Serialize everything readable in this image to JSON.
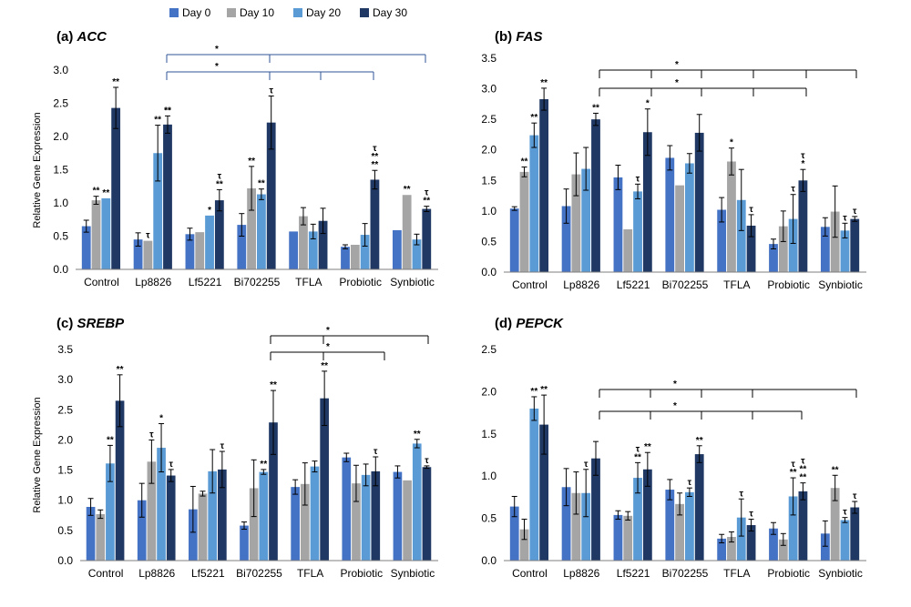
{
  "figure": {
    "legend": {
      "labels": [
        "Day 0",
        "Day 10",
        "Day 20",
        "Day 30"
      ],
      "colors": [
        "#4472c4",
        "#a5a5a5",
        "#5b9bd5",
        "#1f3864"
      ]
    },
    "y_axis_label": "Relative Gene Expression"
  },
  "chart_data": [
    {
      "type": "bar",
      "label": "(a) ",
      "gene": "ACC",
      "title": "(a) ACC",
      "ylabel": "Relative Gene Expression",
      "ylim": [
        0,
        3.0
      ],
      "yticks": [
        "0.0",
        "0.5",
        "1.0",
        "1.5",
        "2.0",
        "2.5",
        "3.0"
      ],
      "grid": false,
      "categories": [
        "Control",
        "Lp8826",
        "Lf5221",
        "Bi702255",
        "TFLA",
        "Probiotic",
        "Synbiotic"
      ],
      "series": [
        {
          "name": "Day 0",
          "values": [
            0.65,
            0.45,
            0.53,
            0.67,
            0.57,
            0.34,
            0.59
          ],
          "errors": [
            0.09,
            0.1,
            0.09,
            0.17,
            0.0,
            0.03,
            0.0
          ]
        },
        {
          "name": "Day 10",
          "values": [
            1.04,
            0.43,
            0.56,
            1.22,
            0.8,
            0.37,
            1.12
          ],
          "errors": [
            0.06,
            0.0,
            0.0,
            0.33,
            0.13,
            0.0,
            0.0
          ]
        },
        {
          "name": "Day 20",
          "values": [
            1.07,
            1.75,
            0.81,
            1.13,
            0.57,
            0.52,
            0.45
          ],
          "errors": [
            0.0,
            0.42,
            0.0,
            0.08,
            0.11,
            0.17,
            0.08
          ]
        },
        {
          "name": "Day 30",
          "values": [
            2.43,
            2.18,
            1.04,
            2.21,
            0.73,
            1.35,
            0.91
          ],
          "errors": [
            0.31,
            0.13,
            0.16,
            0.4,
            0.19,
            0.14,
            0.04
          ]
        }
      ],
      "significance_marks": [
        "**",
        "**",
        "**",
        "**",
        "**",
        "**",
        "τ",
        "*",
        "τ",
        "**",
        "**",
        "**",
        "τ",
        "τ",
        "**",
        "**",
        "τ",
        "**",
        "**"
      ],
      "comparison_brackets": [
        "*",
        "*"
      ]
    },
    {
      "type": "bar",
      "label": "(b) ",
      "gene": "FAS",
      "title": "(b) FAS",
      "ylabel": "",
      "ylim": [
        0,
        3.5
      ],
      "yticks": [
        "0.0",
        "0.5",
        "1.0",
        "1.5",
        "2.0",
        "2.5",
        "3.0",
        "3.5"
      ],
      "grid": false,
      "categories": [
        "Control",
        "Lp8826",
        "Lf5221",
        "Bi702255",
        "TFLA",
        "Probiotic",
        "Synbiotic"
      ],
      "series": [
        {
          "name": "Day 0",
          "values": [
            1.04,
            1.08,
            1.55,
            1.87,
            1.02,
            0.46,
            0.74
          ],
          "errors": [
            0.03,
            0.28,
            0.2,
            0.2,
            0.2,
            0.08,
            0.15
          ]
        },
        {
          "name": "Day 10",
          "values": [
            1.64,
            1.6,
            0.7,
            1.42,
            1.81,
            0.75,
            0.99
          ],
          "errors": [
            0.08,
            0.35,
            0.0,
            0.0,
            0.22,
            0.25,
            0.42
          ]
        },
        {
          "name": "Day 20",
          "values": [
            2.24,
            1.69,
            1.32,
            1.78,
            1.18,
            0.87,
            0.68
          ],
          "errors": [
            0.2,
            0.35,
            0.12,
            0.16,
            0.5,
            0.4,
            0.12
          ]
        },
        {
          "name": "Day 30",
          "values": [
            2.83,
            2.5,
            2.29,
            2.28,
            0.76,
            1.5,
            0.87
          ],
          "errors": [
            0.18,
            0.1,
            0.38,
            0.3,
            0.18,
            0.18,
            0.04
          ]
        }
      ],
      "significance_marks": [
        "**",
        "**",
        "**",
        "**",
        "τ",
        "*",
        "*",
        "τ",
        "τ",
        "*",
        "τ",
        "τ",
        "τ"
      ],
      "comparison_brackets": [
        "*",
        "*"
      ]
    },
    {
      "type": "bar",
      "label": "(c) ",
      "gene": "SREBP",
      "title": "(c) SREBP",
      "ylabel": "Relative Gene Expression",
      "ylim": [
        0,
        3.5
      ],
      "yticks": [
        "0.0",
        "0.5",
        "1.0",
        "1.5",
        "2.0",
        "2.5",
        "3.0",
        "3.5"
      ],
      "grid": false,
      "categories": [
        "Control",
        "Lp8826",
        "Lf5221",
        "Bi702255",
        "TFLA",
        "Probiotic",
        "Synbiotic"
      ],
      "series": [
        {
          "name": "Day 0",
          "values": [
            0.89,
            1.0,
            0.85,
            0.58,
            1.22,
            1.71,
            1.47
          ],
          "errors": [
            0.14,
            0.28,
            0.38,
            0.06,
            0.12,
            0.07,
            0.1
          ]
        },
        {
          "name": "Day 10",
          "values": [
            0.77,
            1.64,
            1.11,
            1.2,
            1.27,
            1.28,
            1.33
          ],
          "errors": [
            0.07,
            0.36,
            0.04,
            0.47,
            0.35,
            0.3,
            0.0
          ]
        },
        {
          "name": "Day 20",
          "values": [
            1.61,
            1.87,
            1.48,
            1.47,
            1.56,
            1.42,
            1.94
          ],
          "errors": [
            0.3,
            0.4,
            0.36,
            0.04,
            0.09,
            0.18,
            0.07
          ]
        },
        {
          "name": "Day 30",
          "values": [
            2.65,
            1.41,
            1.51,
            2.29,
            2.69,
            1.48,
            1.55
          ],
          "errors": [
            0.43,
            0.1,
            0.3,
            0.53,
            0.45,
            0.24,
            0.02
          ]
        }
      ],
      "significance_marks": [
        "**",
        "**",
        "τ",
        "*",
        "τ",
        "τ",
        "**",
        "**",
        "**",
        "τ",
        "**",
        "τ"
      ],
      "comparison_brackets": [
        "*",
        "*"
      ]
    },
    {
      "type": "bar",
      "label": "(d) ",
      "gene": "PEPCK",
      "title": "(d) PEPCK",
      "ylabel": "",
      "ylim": [
        0,
        2.5
      ],
      "yticks": [
        "0.0",
        "0.5",
        "1.0",
        "1.5",
        "2.0",
        "2.5"
      ],
      "grid": false,
      "categories": [
        "Control",
        "Lp8826",
        "Lf5221",
        "Bi702255",
        "TFLA",
        "Probiotic",
        "Synbiotic"
      ],
      "series": [
        {
          "name": "Day 0",
          "values": [
            0.64,
            0.87,
            0.54,
            0.84,
            0.26,
            0.38,
            0.32
          ],
          "errors": [
            0.12,
            0.22,
            0.05,
            0.12,
            0.05,
            0.07,
            0.15
          ]
        },
        {
          "name": "Day 10",
          "values": [
            0.37,
            0.8,
            0.53,
            0.67,
            0.28,
            0.25,
            0.86
          ],
          "errors": [
            0.12,
            0.25,
            0.05,
            0.13,
            0.06,
            0.07,
            0.15
          ]
        },
        {
          "name": "Day 20",
          "values": [
            1.8,
            0.8,
            0.98,
            0.81,
            0.51,
            0.76,
            0.48
          ],
          "errors": [
            0.14,
            0.28,
            0.18,
            0.05,
            0.22,
            0.22,
            0.03
          ]
        },
        {
          "name": "Day 30",
          "values": [
            1.61,
            1.21,
            1.08,
            1.26,
            0.42,
            0.82,
            0.63
          ],
          "errors": [
            0.35,
            0.2,
            0.2,
            0.1,
            0.07,
            0.1,
            0.07
          ]
        }
      ],
      "significance_marks": [
        "**",
        "**",
        "τ",
        "τ",
        "**",
        "**",
        "τ",
        "**",
        "τ",
        "τ",
        "τ",
        "**",
        "**",
        "**",
        "τ",
        "τ",
        "**",
        "τ"
      ],
      "comparison_brackets": [
        "*",
        "*"
      ]
    }
  ]
}
